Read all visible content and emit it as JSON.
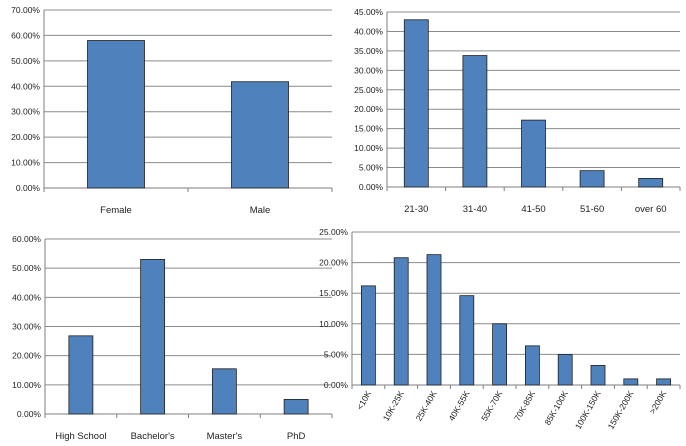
{
  "chart_data": [
    {
      "type": "bar",
      "title": "",
      "xlabel": "",
      "ylabel": "",
      "categories": [
        "Female",
        "Male"
      ],
      "values": [
        58.0,
        41.8
      ],
      "y_ticks": [
        "0.00%",
        "10.00%",
        "20.00%",
        "30.00%",
        "40.00%",
        "50.00%",
        "60.00%",
        "70.00%"
      ],
      "ylim": [
        0,
        70
      ],
      "grid": true,
      "bar_color": "#4f81bd"
    },
    {
      "type": "bar",
      "title": "",
      "xlabel": "",
      "ylabel": "",
      "categories": [
        "21-30",
        "31-40",
        "41-50",
        "51-60",
        "over 60"
      ],
      "values": [
        43.0,
        33.8,
        17.2,
        4.2,
        2.2
      ],
      "y_ticks": [
        "0.00%",
        "5.00%",
        "10.00%",
        "15.00%",
        "20.00%",
        "25.00%",
        "30.00%",
        "35.00%",
        "40.00%",
        "45.00%"
      ],
      "ylim": [
        0,
        45
      ],
      "grid": true,
      "bar_color": "#4f81bd"
    },
    {
      "type": "bar",
      "title": "",
      "xlabel": "",
      "ylabel": "",
      "categories": [
        "High School",
        "Bachelor's",
        "Master's",
        "PhD"
      ],
      "values": [
        26.8,
        53.0,
        15.5,
        5.0
      ],
      "y_ticks": [
        "0.00%",
        "10.00%",
        "20.00%",
        "30.00%",
        "40.00%",
        "50.00%",
        "60.00%"
      ],
      "ylim": [
        0,
        60
      ],
      "grid": true,
      "bar_color": "#4f81bd"
    },
    {
      "type": "bar",
      "title": "",
      "xlabel": "",
      "ylabel": "",
      "categories": [
        "<10K",
        "10K-25K",
        "25K-40K",
        "40K-55K",
        "55K-70K",
        "70K-85K",
        "85K-100K",
        "100K-150K",
        "150K-200K",
        ">200K"
      ],
      "values": [
        16.2,
        20.8,
        21.3,
        14.6,
        10.0,
        6.4,
        5.0,
        3.2,
        1.0,
        1.0
      ],
      "y_ticks": [
        "0.00%",
        "5.00%",
        "10.00%",
        "15.00%",
        "20.00%",
        "25.00%"
      ],
      "ylim": [
        0,
        25
      ],
      "grid": true,
      "bar_color": "#4f81bd"
    }
  ]
}
